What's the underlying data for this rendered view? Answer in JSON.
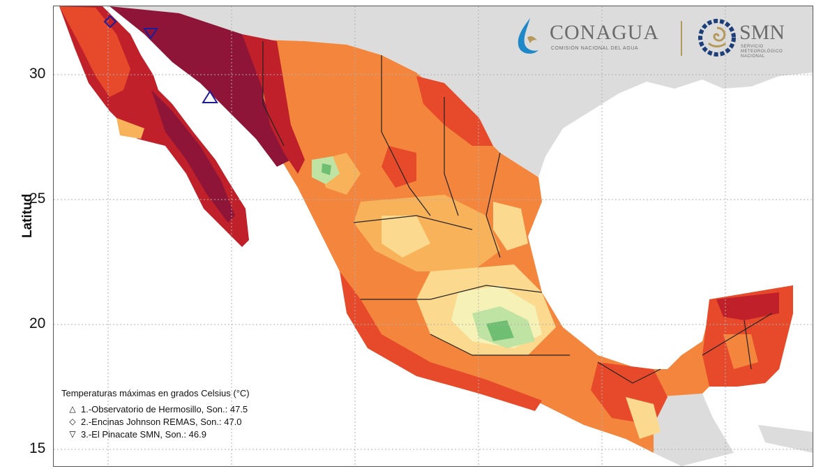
{
  "map": {
    "y_axis_label": "Latitud",
    "y_ticks": [
      "30",
      "25",
      "20",
      "15"
    ],
    "top_tick_fragment": "-",
    "colors": {
      "extreme": "#8e1538",
      "very_hot": "#c0202a",
      "hot": "#e64a2a",
      "warm": "#f3853c",
      "mild": "#f8b25a",
      "light": "#fbd98e",
      "cool": "#f6f1b6",
      "cooler": "#bfe3a2",
      "coolest": "#6fbf73",
      "land_other": "#dcdcdc",
      "ocean": "#ffffff",
      "gridline": "#b0b0b0"
    }
  },
  "legend": {
    "title": "Temperaturas máximas en grados Celsius (°C)",
    "stations": [
      {
        "symbol": "△",
        "label": "1.-Observatorio de Hermosillo, Son.: 47.5"
      },
      {
        "symbol": "◇",
        "label": "2.-Encinas Johnson REMAS, Son.: 47.0"
      },
      {
        "symbol": "▽",
        "label": "3.-El Pinacate SMN, Son.: 46.9"
      }
    ]
  },
  "logos": {
    "conagua_name": "CONAGUA",
    "conagua_sub": "COMISIÓN NACIONAL DEL AGUA",
    "smn_name": "SMN",
    "smn_sub": "SERVICIO METEOROLÓGICO NACIONAL"
  }
}
